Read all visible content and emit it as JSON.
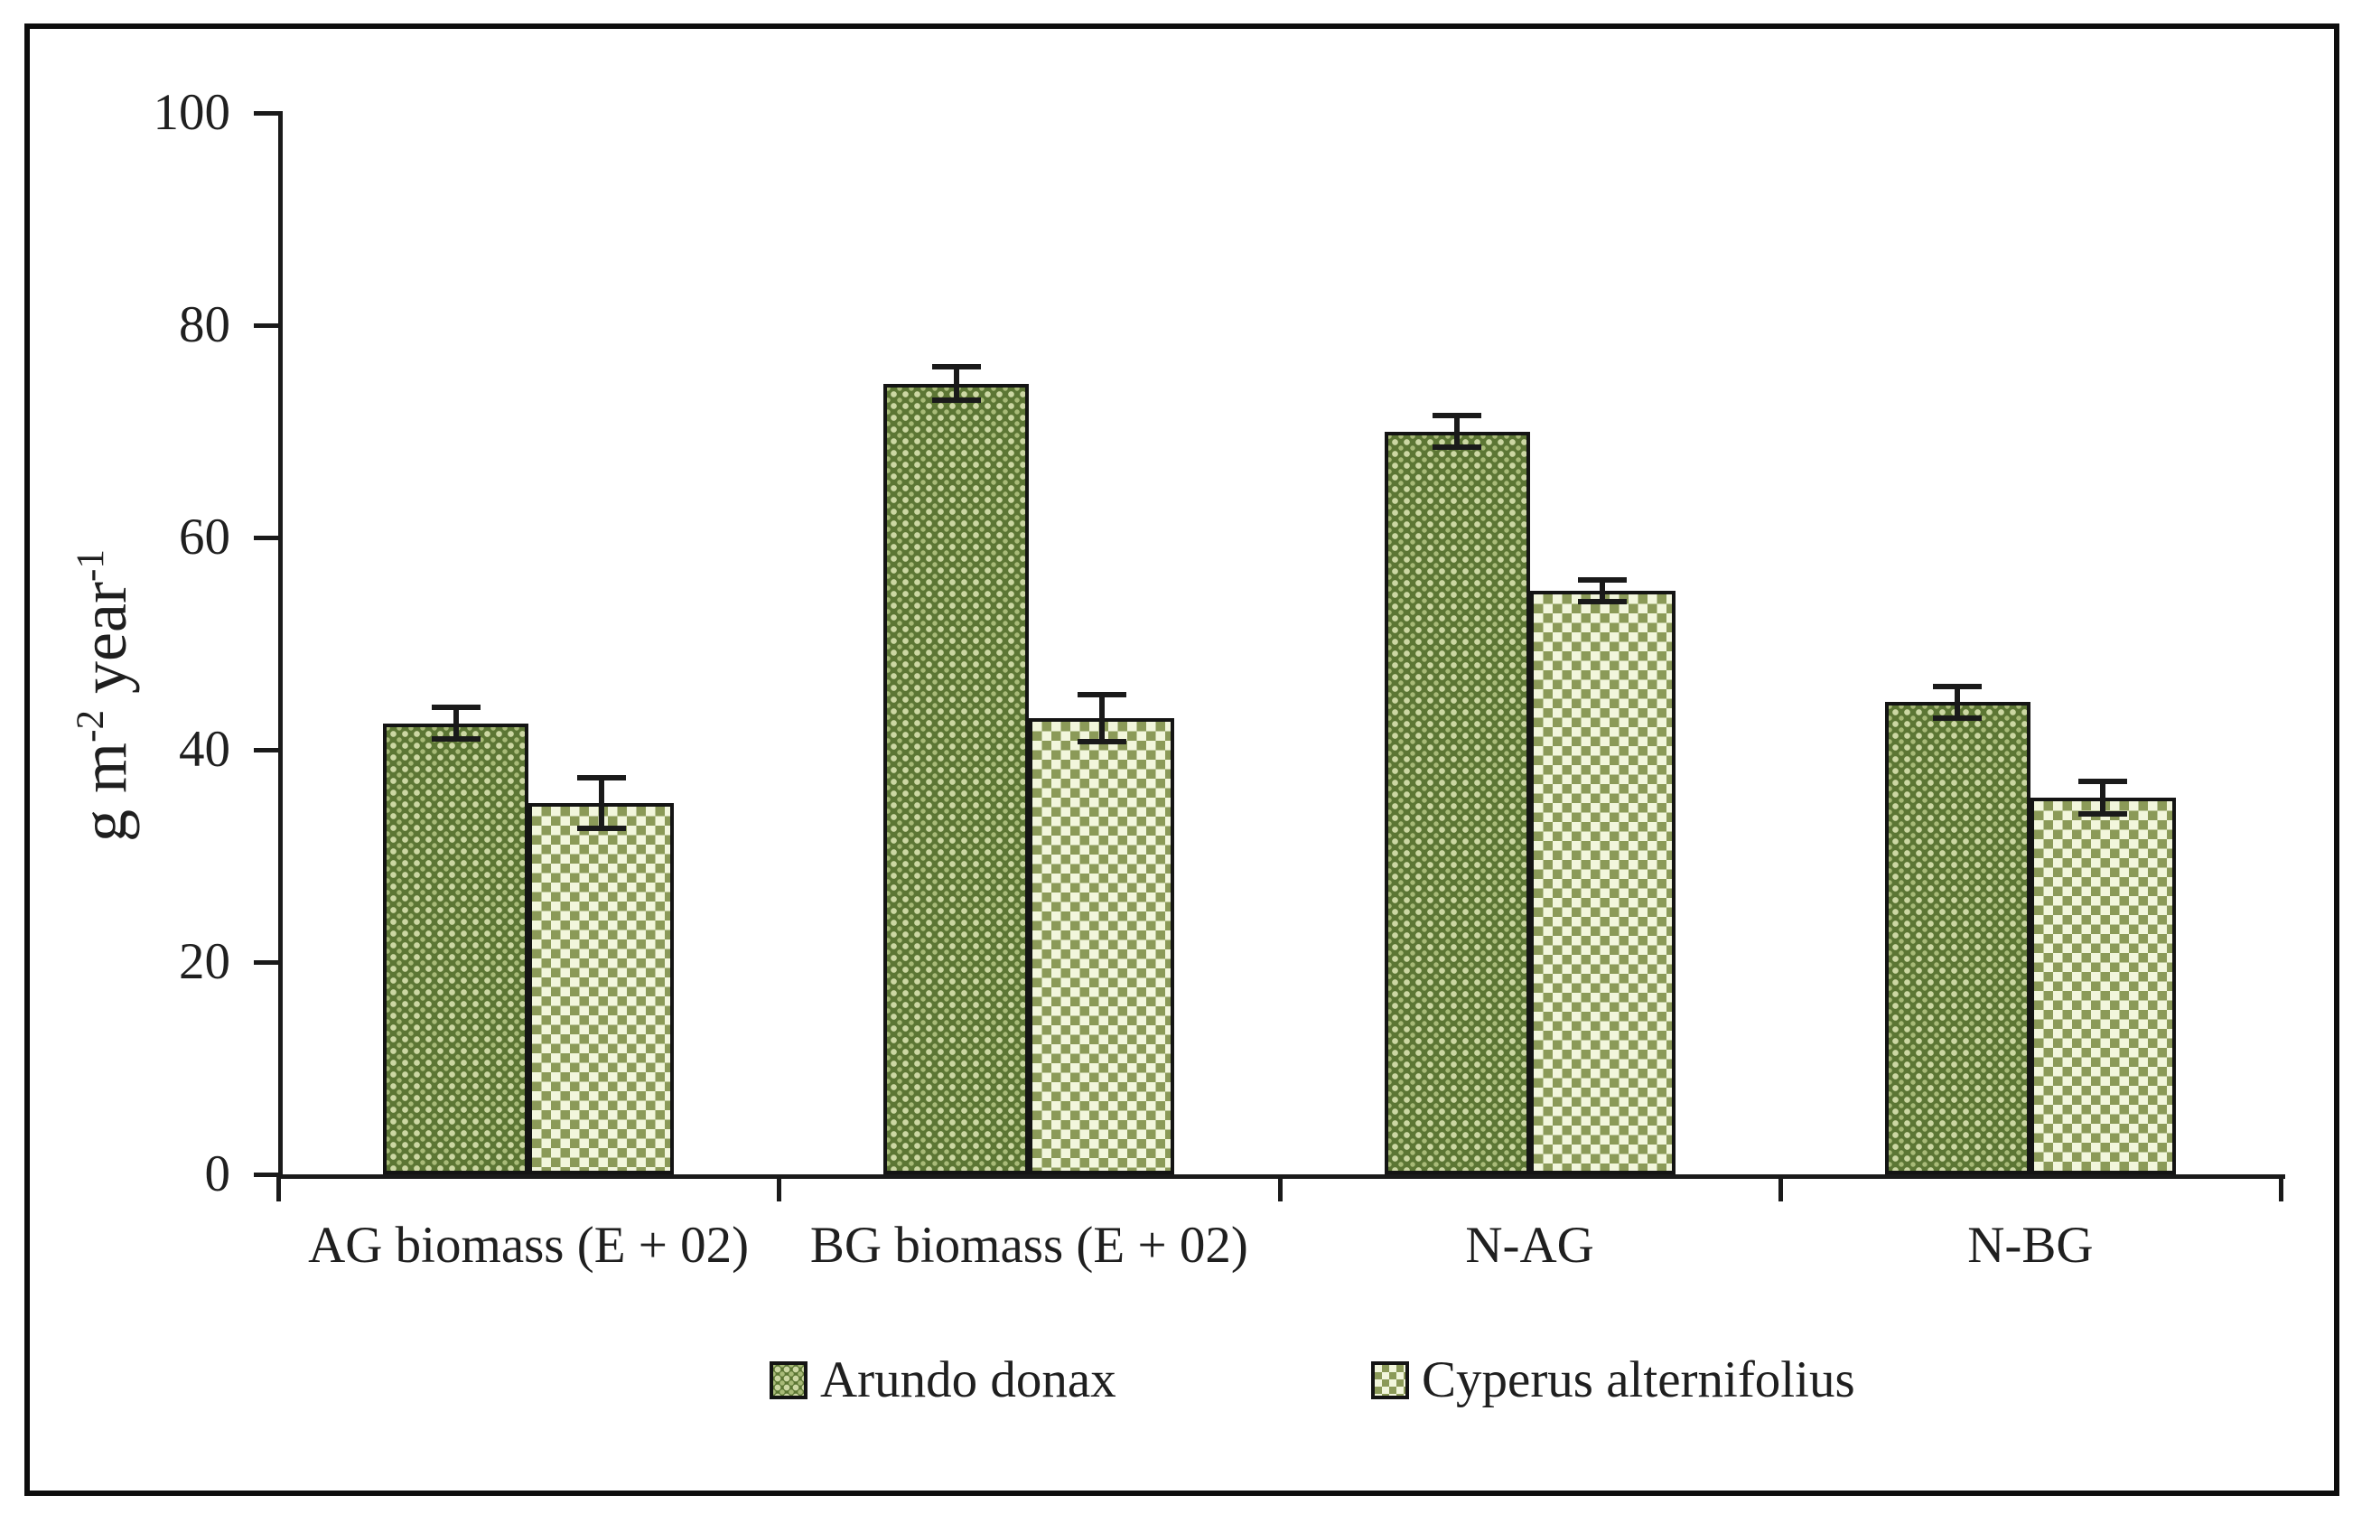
{
  "chart_data": {
    "type": "bar",
    "title": "",
    "ylabel": "g m⁻² year⁻¹",
    "ylabel_parts": {
      "base1": "g m",
      "sup1": "-2",
      "base2": " year",
      "sup2": "-1"
    },
    "ylim": [
      0,
      100
    ],
    "yticks": [
      0,
      20,
      40,
      60,
      80,
      100
    ],
    "grid": false,
    "legend_position": "bottom",
    "categories": [
      "AG biomass (E + 02)",
      "BG biomass (E + 02)",
      "N-AG",
      "N-BG"
    ],
    "series": [
      {
        "name": "Arundo donax",
        "values": [
          42.5,
          74.5,
          70,
          44.5
        ],
        "errors": [
          1.5,
          1.6,
          1.5,
          1.5
        ],
        "pattern": "dots",
        "fill_color": "#5c7634",
        "pattern_color": "#ccd7a3"
      },
      {
        "name": "Cyperus alternifolius",
        "values": [
          35,
          43,
          55,
          35.5
        ],
        "errors": [
          2.4,
          2.2,
          1.0,
          1.5
        ],
        "pattern": "checker",
        "fill_color": "#8b9a58",
        "pattern_color": "#f2f6dc"
      }
    ],
    "bar_outline_color": "#141414",
    "error_bar_color": "#1a1a1a",
    "axis_color": "#1a1a1a"
  }
}
